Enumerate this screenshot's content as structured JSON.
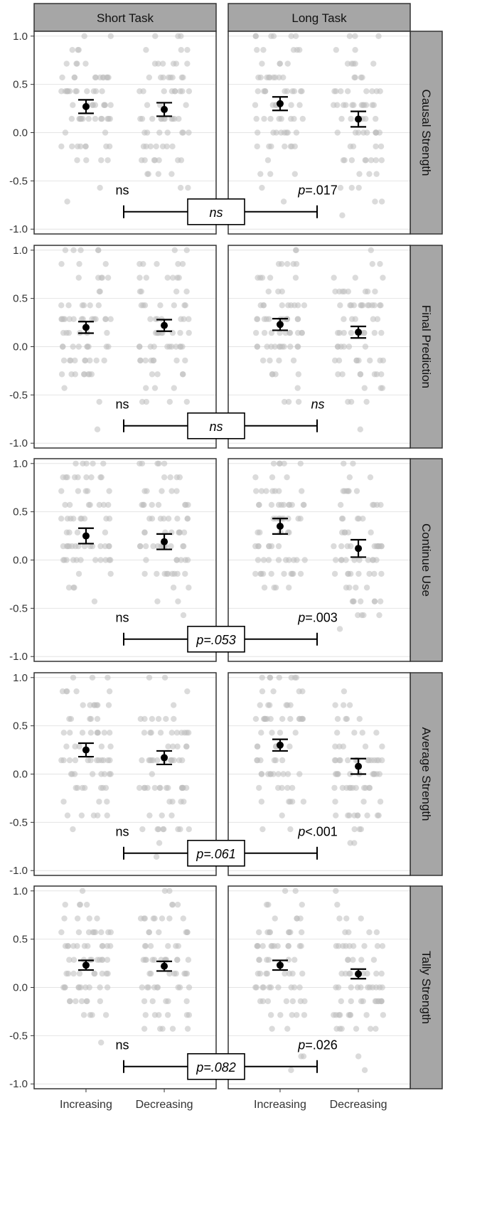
{
  "chart_data": {
    "type": "scatter",
    "description_free": true,
    "columns": [
      "Short Task",
      "Long Task"
    ],
    "rows": [
      "Causal Strength",
      "Final Prediction",
      "Continue Use",
      "Average Strength",
      "Tally Strength"
    ],
    "categories": [
      "Increasing",
      "Decreasing"
    ],
    "ylim": [
      -1.05,
      1.05
    ],
    "yticks": [
      1.0,
      0.5,
      0.0,
      -0.5,
      -1.0
    ],
    "ytick_labels": [
      "1.0",
      "0.5",
      "0.0",
      "-0.5",
      "-1.0"
    ],
    "grid": true,
    "colors": {
      "points": "#bdbdbd",
      "mean": "#000000",
      "strip": "#a6a6a6",
      "panel_border": "#333333"
    },
    "panels": [
      {
        "row": "Causal Strength",
        "means": {
          "Short Task": [
            0.27,
            0.24
          ],
          "Long Task": [
            0.3,
            0.14
          ]
        },
        "errors": {
          "Short Task": [
            0.07,
            0.07
          ],
          "Long Task": [
            0.07,
            0.08
          ]
        },
        "annotations": {
          "left": "ns",
          "right": "p=.017",
          "center": "ns"
        }
      },
      {
        "row": "Final Prediction",
        "means": {
          "Short Task": [
            0.2,
            0.22
          ],
          "Long Task": [
            0.23,
            0.15
          ]
        },
        "errors": {
          "Short Task": [
            0.06,
            0.06
          ],
          "Long Task": [
            0.06,
            0.06
          ]
        },
        "annotations": {
          "left": "ns",
          "right": "ns",
          "center": "ns"
        }
      },
      {
        "row": "Continue Use",
        "means": {
          "Short Task": [
            0.25,
            0.19
          ],
          "Long Task": [
            0.35,
            0.12
          ]
        },
        "errors": {
          "Short Task": [
            0.08,
            0.08
          ],
          "Long Task": [
            0.08,
            0.09
          ]
        },
        "annotations": {
          "left": "ns",
          "right": "p=.003",
          "center": "p=.053"
        }
      },
      {
        "row": "Average Strength",
        "means": {
          "Short Task": [
            0.25,
            0.17
          ],
          "Long Task": [
            0.3,
            0.08
          ]
        },
        "errors": {
          "Short Task": [
            0.07,
            0.07
          ],
          "Long Task": [
            0.06,
            0.08
          ]
        },
        "annotations": {
          "left": "ns",
          "right": "p<.001",
          "center": "p=.061"
        }
      },
      {
        "row": "Tally Strength",
        "means": {
          "Short Task": [
            0.23,
            0.22
          ],
          "Long Task": [
            0.23,
            0.14
          ]
        },
        "errors": {
          "Short Task": [
            0.05,
            0.05
          ],
          "Long Task": [
            0.05,
            0.05
          ]
        },
        "annotations": {
          "left": "ns",
          "right": "p=.026",
          "center": "p=.082"
        }
      }
    ]
  }
}
